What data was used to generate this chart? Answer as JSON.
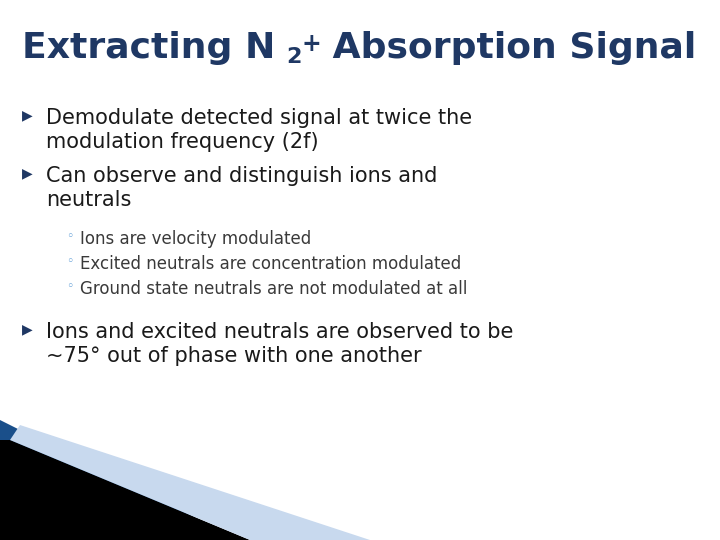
{
  "bg_color": "#ffffff",
  "title_color": "#1F3864",
  "text_color": "#1a1a1a",
  "bullet_color": "#1F3864",
  "sub_text_color": "#3a3a3a",
  "bullet1_line1": "Demodulate detected signal at twice the",
  "bullet1_line2": "modulation frequency (2f)",
  "bullet2_line1": "Can observe and distinguish ions and",
  "bullet2_line2": "neutrals",
  "sub1": "Ions are velocity modulated",
  "sub2": "Excited neutrals are concentration modulated",
  "sub3": "Ground state neutrals are not modulated at all",
  "bullet3_line1": "Ions and excited neutrals are observed to be",
  "bullet3_line2": "~75° out of phase with one another",
  "corner_blue": "#1a4f8a",
  "corner_black": "#000000",
  "corner_light": "#c8d9ee"
}
